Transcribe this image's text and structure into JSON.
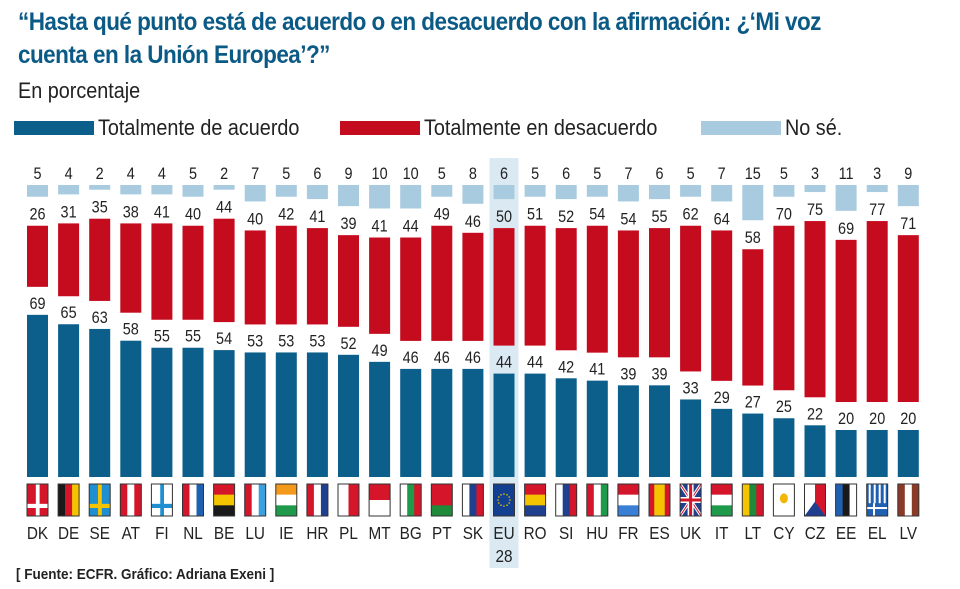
{
  "header": {
    "title": "“Hasta qué punto está de acuerdo o en desacuerdo con la afirmación: ¿‘Mi voz cuenta en la Unión Europea’?”",
    "subtitle": "En porcentaje"
  },
  "legend": [
    {
      "label": "Totalmente de acuerdo",
      "color": "#0b5f8a"
    },
    {
      "label": "Totalmente en desacuerdo",
      "color": "#c50c1f"
    },
    {
      "label": "No sé.",
      "color": "#a9cbe0"
    }
  ],
  "footer": {
    "source": "[ Fuente: ECFR. Gráfico: Adriana Exeni ]"
  },
  "chart_data": {
    "type": "bar",
    "stacked": true,
    "title": "“Hasta qué punto está de acuerdo o en desacuerdo con la afirmación: ¿‘Mi voz cuenta en la Unión Europea’?”",
    "subtitle": "En porcentaje",
    "xlabel": "",
    "ylabel": "",
    "unit": "%",
    "legend_position": "top-left",
    "highlight": "EU 28",
    "highlight_color": "#0b5f8a",
    "highlight_bg": "#dbe9f3",
    "categories": [
      "DK",
      "DE",
      "SE",
      "AT",
      "FI",
      "NL",
      "BE",
      "LU",
      "IE",
      "HR",
      "PL",
      "MT",
      "BG",
      "PT",
      "SK",
      "EU 28",
      "RO",
      "SI",
      "HU",
      "FR",
      "ES",
      "UK",
      "IT",
      "LT",
      "CY",
      "CZ",
      "EE",
      "EL",
      "LV"
    ],
    "series": [
      {
        "name": "Totalmente de acuerdo",
        "color": "#0b5f8a",
        "values": [
          69,
          65,
          63,
          58,
          55,
          55,
          54,
          53,
          53,
          53,
          52,
          49,
          46,
          46,
          46,
          44,
          44,
          42,
          41,
          39,
          39,
          33,
          29,
          27,
          25,
          22,
          20,
          20,
          20
        ]
      },
      {
        "name": "Totalmente en desacuerdo",
        "color": "#c50c1f",
        "values": [
          26,
          31,
          35,
          38,
          41,
          40,
          44,
          40,
          42,
          41,
          39,
          41,
          44,
          49,
          46,
          50,
          51,
          52,
          54,
          54,
          55,
          62,
          64,
          58,
          70,
          75,
          69,
          77,
          71
        ]
      },
      {
        "name": "No sé.",
        "color": "#a9cbe0",
        "values": [
          5,
          4,
          2,
          4,
          4,
          5,
          2,
          7,
          5,
          6,
          9,
          10,
          10,
          5,
          8,
          6,
          5,
          6,
          5,
          7,
          6,
          5,
          7,
          15,
          5,
          3,
          11,
          3,
          9
        ]
      }
    ],
    "flags": {
      "DK": {
        "kind": "cross",
        "bg": "#d4152a",
        "fg": "#ffffff"
      },
      "DE": {
        "kind": "vstripes",
        "colors": [
          "#1a1a1a",
          "#d4152a",
          "#f5c400"
        ]
      },
      "SE": {
        "kind": "cross",
        "bg": "#1f8fd1",
        "fg": "#f5c400"
      },
      "AT": {
        "kind": "vstripes",
        "colors": [
          "#d4152a",
          "#ffffff",
          "#d4152a"
        ]
      },
      "FI": {
        "kind": "cross",
        "bg": "#ffffff",
        "fg": "#1f8fd1"
      },
      "NL": {
        "kind": "vstripes",
        "colors": [
          "#d4152a",
          "#ffffff",
          "#1f60b0"
        ]
      },
      "BE": {
        "kind": "hstripes",
        "colors": [
          "#d4152a",
          "#f5c400",
          "#1a1a1a"
        ]
      },
      "LU": {
        "kind": "vstripes",
        "colors": [
          "#d4152a",
          "#ffffff",
          "#3aa0de"
        ]
      },
      "IE": {
        "kind": "hstripes",
        "colors": [
          "#f39a1d",
          "#ffffff",
          "#1e9a4a"
        ]
      },
      "HR": {
        "kind": "vstripes",
        "colors": [
          "#d4152a",
          "#ffffff",
          "#1f3f8f"
        ]
      },
      "PL": {
        "kind": "vstripes",
        "colors": [
          "#ffffff",
          "#d4152a"
        ]
      },
      "MT": {
        "kind": "hstripes",
        "colors": [
          "#d4152a",
          "#ffffff"
        ]
      },
      "BG": {
        "kind": "vstripes",
        "colors": [
          "#ffffff",
          "#1e9a4a",
          "#d4152a"
        ]
      },
      "PT": {
        "kind": "hstripes",
        "colors": [
          "#d4152a",
          "#d4152a",
          "#1e8a3a"
        ]
      },
      "SK": {
        "kind": "vstripes",
        "colors": [
          "#ffffff",
          "#1f3f8f",
          "#d4152a"
        ]
      },
      "EU 28": {
        "kind": "eu",
        "bg": "#123f8f",
        "fg": "#f5c400"
      },
      "RO": {
        "kind": "hstripes",
        "colors": [
          "#d4152a",
          "#f5c400",
          "#1f3f8f"
        ]
      },
      "SI": {
        "kind": "vstripes",
        "colors": [
          "#ffffff",
          "#1f3f8f",
          "#d4152a"
        ]
      },
      "HU": {
        "kind": "vstripes",
        "colors": [
          "#d4152a",
          "#ffffff",
          "#1e9a4a"
        ]
      },
      "FR": {
        "kind": "hstripes",
        "colors": [
          "#d4152a",
          "#ffffff",
          "#3a7fd6"
        ]
      },
      "ES": {
        "kind": "vstripes",
        "colors": [
          "#d4152a",
          "#f5c400",
          "#f5c400",
          "#d4152a"
        ]
      },
      "UK": {
        "kind": "uk",
        "bg": "#1f3f8f",
        "fg": "#d4152a"
      },
      "IT": {
        "kind": "hstripes",
        "colors": [
          "#d4152a",
          "#ffffff",
          "#1e9a4a"
        ]
      },
      "LT": {
        "kind": "vstripes",
        "colors": [
          "#f5c400",
          "#1e8a3a",
          "#d4152a"
        ]
      },
      "CY": {
        "kind": "solid",
        "bg": "#ffffff",
        "fg": "#f2b705"
      },
      "CZ": {
        "kind": "cz",
        "colors": [
          "#ffffff",
          "#d4152a",
          "#1f3f8f"
        ]
      },
      "EE": {
        "kind": "vstripes",
        "colors": [
          "#1f60b0",
          "#1a1a1a",
          "#ffffff"
        ]
      },
      "EL": {
        "kind": "el",
        "bg": "#1f60b0",
        "fg": "#ffffff"
      },
      "LV": {
        "kind": "vstripes",
        "colors": [
          "#8a3b28",
          "#ffffff",
          "#8a3b28"
        ]
      }
    }
  }
}
